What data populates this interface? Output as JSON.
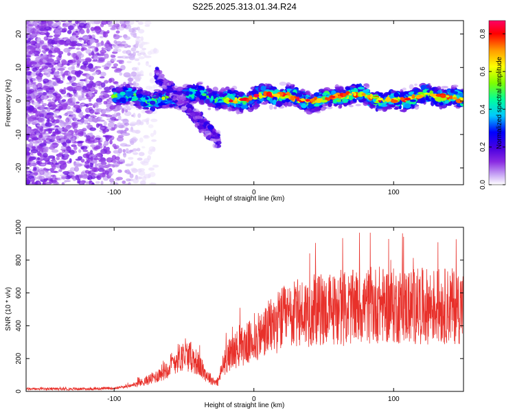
{
  "title": "S225.2025.313.01.34.R24",
  "colors": {
    "snr_line": "#e8302a",
    "colormap": [
      "#ffffff",
      "#c9a8f5",
      "#8a2be2",
      "#4b00e0",
      "#0000ff",
      "#00c8ff",
      "#00ff9a",
      "#7fff00",
      "#ffff00",
      "#ff9900",
      "#ff0000",
      "#ff0066"
    ]
  },
  "chart_data": [
    {
      "type": "heatmap",
      "title": "",
      "xlabel": "Height of straight line (km)",
      "ylabel": "Frequency (Hz)",
      "xlim": [
        -163,
        150
      ],
      "ylim": [
        -25,
        24
      ],
      "xticks": [
        -100,
        0,
        100
      ],
      "xtick_labels": [
        "-100",
        "0",
        "100"
      ],
      "yticks": [
        -20,
        -10,
        0,
        10,
        20
      ],
      "ytick_labels": [
        "-20",
        "-10",
        "0",
        "10",
        "20"
      ],
      "colorbar": {
        "label": "Normalized spectral amplitude",
        "range": [
          0.0,
          0.87
        ],
        "ticks": [
          0.0,
          0.2,
          0.4,
          0.6,
          0.8
        ],
        "tick_labels": [
          "0.0",
          "0.2",
          "0.4",
          "0.6",
          "0.8"
        ]
      },
      "features": [
        {
          "region": "broadband noise",
          "x_range": [
            -163,
            -80
          ],
          "y_range": [
            -25,
            24
          ],
          "amplitude": 0.1
        },
        {
          "region": "signal band",
          "x_range": [
            -100,
            150
          ],
          "center_freq": 1,
          "half_width": 4,
          "amplitude": 0.45
        },
        {
          "region": "frequency excursion",
          "x_range": [
            -70,
            -25
          ],
          "freq_from": 8,
          "freq_to": -12,
          "amplitude": 0.2
        }
      ]
    },
    {
      "type": "line",
      "title": "",
      "xlabel": "Height of straight line (km)",
      "ylabel": "SNR (10 * v/v)",
      "xlim": [
        -163,
        150
      ],
      "ylim": [
        0,
        1000
      ],
      "xticks": [
        -100,
        0,
        100
      ],
      "xtick_labels": [
        "-100",
        "0",
        "100"
      ],
      "yticks": [
        0,
        200,
        400,
        600,
        800,
        1000
      ],
      "ytick_labels": [
        "0",
        "200",
        "400",
        "600",
        "800",
        "1000"
      ],
      "series": [
        {
          "x": [
            -163,
            -140,
            -120,
            -100,
            -90,
            -80,
            -70,
            -62,
            -55,
            -50,
            -45,
            -40,
            -35,
            -30,
            -26,
            -22,
            -18,
            -12,
            -5,
            0,
            5,
            10,
            20,
            30,
            40,
            50,
            60,
            70,
            80,
            90,
            100,
            110,
            120,
            130,
            140,
            150
          ],
          "values": [
            15,
            15,
            15,
            20,
            30,
            55,
            90,
            140,
            200,
            220,
            210,
            170,
            110,
            70,
            50,
            160,
            220,
            260,
            290,
            310,
            340,
            380,
            440,
            470,
            490,
            500,
            500,
            510,
            520,
            530,
            520,
            520,
            520,
            520,
            520,
            520
          ]
        }
      ]
    }
  ]
}
